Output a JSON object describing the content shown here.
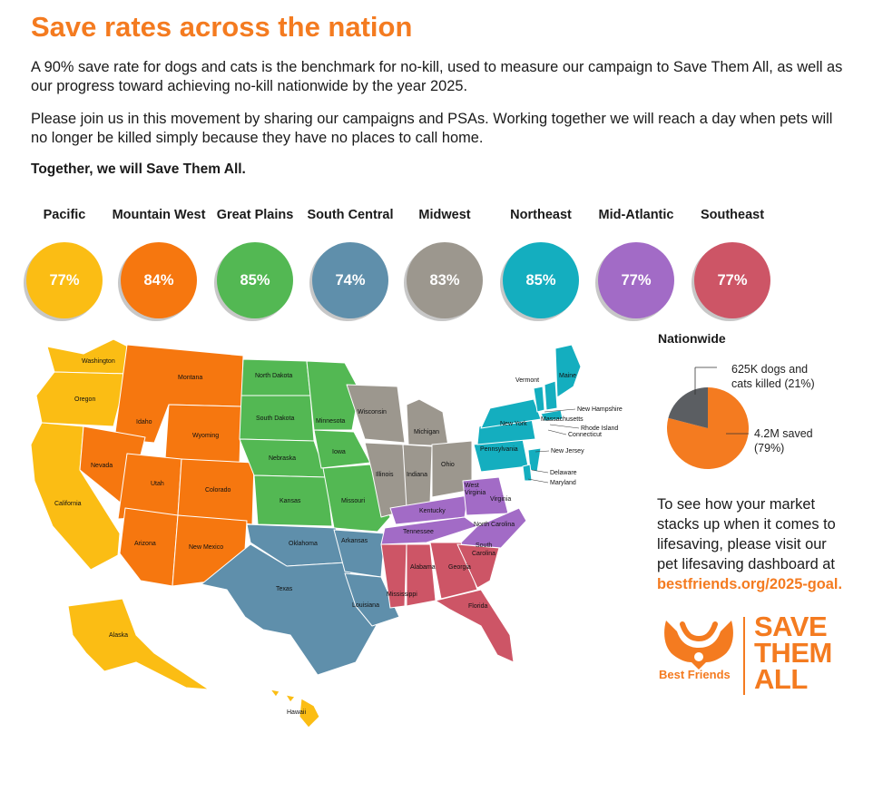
{
  "header": {
    "title": "Save rates across the nation",
    "paragraph1": "A 90% save rate for dogs and cats is the benchmark for no-kill, used to measure our campaign to Save Them All, as well as our progress toward achieving no-kill nationwide by the year 2025.",
    "paragraph2": "Please join us in this movement by sharing our campaigns and PSAs. Working together we will reach a day when pets will no longer be killed simply because they have no places to call home.",
    "tagline": "Together, we will Save Them All."
  },
  "regions": [
    {
      "name": "Pacific",
      "rate": "77%",
      "color": "#fbbd14"
    },
    {
      "name": "Mountain West",
      "rate": "84%",
      "color": "#f6770f"
    },
    {
      "name": "Great Plains",
      "rate": "85%",
      "color": "#53b853"
    },
    {
      "name": "South Central",
      "rate": "74%",
      "color": "#5f8fab"
    },
    {
      "name": "Midwest",
      "rate": "83%",
      "color": "#9c978e"
    },
    {
      "name": "Northeast",
      "rate": "85%",
      "color": "#14aebf"
    },
    {
      "name": "Mid-Atlantic",
      "rate": "77%",
      "color": "#a26bc6"
    },
    {
      "name": "Southeast",
      "rate": "77%",
      "color": "#cd5566"
    }
  ],
  "map_labels": {
    "washington": "Washington",
    "oregon": "Oregon",
    "california": "California",
    "alaska": "Alaska",
    "hawaii": "Hawaii",
    "idaho": "Idaho",
    "montana": "Montana",
    "wyoming": "Wyoming",
    "nevada": "Nevada",
    "utah": "Utah",
    "colorado": "Colorado",
    "arizona": "Arizona",
    "new_mexico": "New Mexico",
    "north_dakota": "North Dakota",
    "south_dakota": "South Dakota",
    "nebraska": "Nebraska",
    "kansas": "Kansas",
    "minnesota": "Minnesota",
    "iowa": "Iowa",
    "missouri": "Missouri",
    "oklahoma": "Oklahoma",
    "texas": "Texas",
    "arkansas": "Arkansas",
    "louisiana": "Louisiana",
    "wisconsin": "Wisconsin",
    "michigan": "Michigan",
    "illinois": "Illinois",
    "indiana": "Indiana",
    "ohio": "Ohio",
    "kentucky": "Kentucky",
    "west_virginia_1": "West",
    "west_virginia_2": "Virginia",
    "virginia": "Virginia",
    "tennessee": "Tennessee",
    "north_carolina": "North Carolina",
    "mississippi": "Mississippi",
    "alabama": "Alabama",
    "georgia": "Georgia",
    "south_carolina_1": "South",
    "south_carolina_2": "Carolina",
    "florida": "Florida",
    "maine": "Maine",
    "vermont": "Vermont",
    "new_hampshire": "New Hampshire",
    "massachusetts": "Massachusetts",
    "rhode_island": "Rhode Island",
    "connecticut": "Connecticut",
    "new_york": "New York",
    "pennsylvania": "Pennsylvania",
    "new_jersey": "New Jersey",
    "delaware": "Delaware",
    "maryland": "Maryland"
  },
  "nationwide": {
    "title": "Nationwide",
    "killed_label_1": "625K dogs and",
    "killed_label_2": "cats killed (21%)",
    "saved_label_1": "4.2M saved",
    "saved_label_2": "(79%)",
    "killed_fraction": 0.21,
    "saved_fraction": 0.79,
    "killed_color": "#5b5e62",
    "saved_color": "#f47b20"
  },
  "cta": {
    "line1": "To see how your market",
    "line2": "stacks up when it comes to",
    "line3": "lifesaving, please visit our",
    "line4": "pet lifesaving dashboard at",
    "link": "bestfriends.org/2025-goal."
  },
  "logo": {
    "brand": "Best Friends",
    "line1": "SAVE",
    "line2": "THEM",
    "line3": "ALL",
    "color": "#f47b20"
  }
}
